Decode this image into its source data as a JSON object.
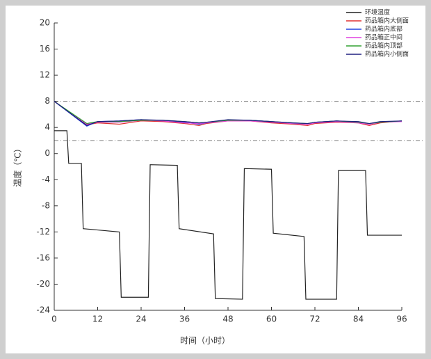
{
  "chart_data": {
    "type": "line",
    "x_label": "时间（小时）",
    "y_label": "温度（℃）",
    "xlim": [
      0,
      96
    ],
    "xticks": [
      0,
      12,
      24,
      36,
      48,
      60,
      72,
      84,
      96
    ],
    "ylim": [
      -24,
      20
    ],
    "yticks": [
      -24,
      -20,
      -16,
      -12,
      -8,
      -4,
      0,
      4,
      8,
      12,
      16,
      20
    ],
    "reference_lines": [
      8,
      2
    ],
    "legend": "top-right",
    "series": [
      {
        "name": "环境温度",
        "color": "#222222",
        "x": [
          0,
          3.5,
          4,
          7.5,
          8,
          18,
          18.5,
          26,
          26.5,
          34,
          34.5,
          44,
          44.5,
          52,
          52.5,
          60,
          60.5,
          69,
          69.5,
          78,
          78.5,
          86,
          86.5,
          96
        ],
        "values": [
          3.5,
          3.5,
          -1.5,
          -1.5,
          -11.5,
          -12,
          -22,
          -22,
          -1.7,
          -1.8,
          -11.5,
          -12.3,
          -22.2,
          -22.3,
          -2.3,
          -2.4,
          -12.2,
          -12.7,
          -22.3,
          -22.3,
          -2.6,
          -2.6,
          -12.5,
          -12.5
        ]
      },
      {
        "name": "药品箱内大侧面",
        "color": "#e03030",
        "x": [
          0,
          9,
          12,
          18,
          24,
          30,
          36,
          40,
          42,
          48,
          54,
          60,
          66,
          70,
          72,
          78,
          84,
          87,
          90,
          96
        ],
        "values": [
          8,
          4.4,
          4.7,
          4.5,
          5.0,
          4.9,
          4.6,
          4.3,
          4.6,
          5.0,
          5.0,
          4.7,
          4.5,
          4.3,
          4.6,
          4.8,
          4.7,
          4.3,
          4.7,
          5.0
        ]
      },
      {
        "name": "药品箱内底部",
        "color": "#2040e0",
        "x": [
          0,
          9,
          12,
          18,
          24,
          30,
          36,
          40,
          42,
          48,
          54,
          60,
          66,
          70,
          72,
          78,
          84,
          87,
          90,
          96
        ],
        "values": [
          8,
          4.2,
          4.9,
          5.0,
          5.2,
          5.0,
          4.8,
          4.5,
          4.7,
          5.1,
          5.1,
          4.9,
          4.6,
          4.5,
          4.8,
          5.0,
          4.8,
          4.5,
          4.8,
          5.0
        ]
      },
      {
        "name": "药品箱正中间",
        "color": "#e040e0",
        "x": [
          0,
          9,
          12,
          18,
          24,
          30,
          36,
          40,
          42,
          48,
          54,
          60,
          66,
          70,
          72,
          78,
          84,
          87,
          90,
          96
        ],
        "values": [
          8,
          4.5,
          4.8,
          4.8,
          5.1,
          5.0,
          4.7,
          4.6,
          4.7,
          5.0,
          5.0,
          4.8,
          4.6,
          4.5,
          4.7,
          4.9,
          4.7,
          4.5,
          4.8,
          4.9
        ]
      },
      {
        "name": "药品箱内顶部",
        "color": "#30a030",
        "x": [
          0,
          9,
          12,
          18,
          24,
          30,
          36,
          40,
          42,
          48,
          54,
          60,
          66,
          70,
          72,
          78,
          84,
          87,
          90,
          96
        ],
        "values": [
          8,
          4.6,
          4.9,
          4.9,
          5.1,
          5.1,
          4.9,
          4.7,
          4.8,
          5.1,
          5.1,
          4.9,
          4.7,
          4.6,
          4.8,
          5.0,
          4.8,
          4.6,
          4.8,
          5.0
        ]
      },
      {
        "name": "药品箱内小侧面",
        "color": "#202080",
        "x": [
          0,
          9,
          12,
          18,
          24,
          30,
          36,
          40,
          42,
          48,
          54,
          60,
          66,
          70,
          72,
          78,
          84,
          87,
          90,
          96
        ],
        "values": [
          8,
          4.3,
          4.9,
          5.0,
          5.2,
          5.1,
          4.9,
          4.7,
          4.8,
          5.2,
          5.1,
          4.9,
          4.7,
          4.6,
          4.8,
          5.0,
          4.9,
          4.6,
          4.9,
          5.0
        ]
      }
    ]
  }
}
